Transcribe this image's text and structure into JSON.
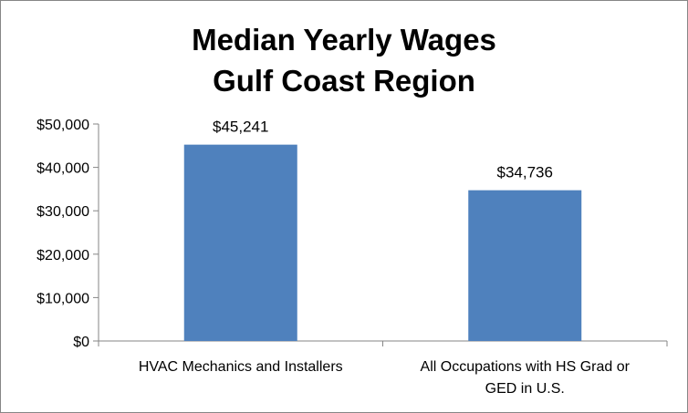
{
  "chart_data": {
    "type": "bar",
    "title_lines": [
      "Median Yearly Wages",
      "Gulf Coast Region"
    ],
    "categories": [
      [
        "HVAC Mechanics and Installers"
      ],
      [
        "All Occupations with HS Grad or",
        "GED in U.S."
      ]
    ],
    "values": [
      45241,
      34736
    ],
    "data_labels": [
      "$45,241",
      "$34,736"
    ],
    "ylim": [
      0,
      50000
    ],
    "y_ticks": [
      0,
      10000,
      20000,
      30000,
      40000,
      50000
    ],
    "y_tick_labels": [
      "$0",
      "$10,000",
      "$20,000",
      "$30,000",
      "$40,000",
      "$50,000"
    ],
    "grid": false,
    "legend": "none",
    "bar_color": "#4f81bd",
    "axis_color": "#868686"
  }
}
